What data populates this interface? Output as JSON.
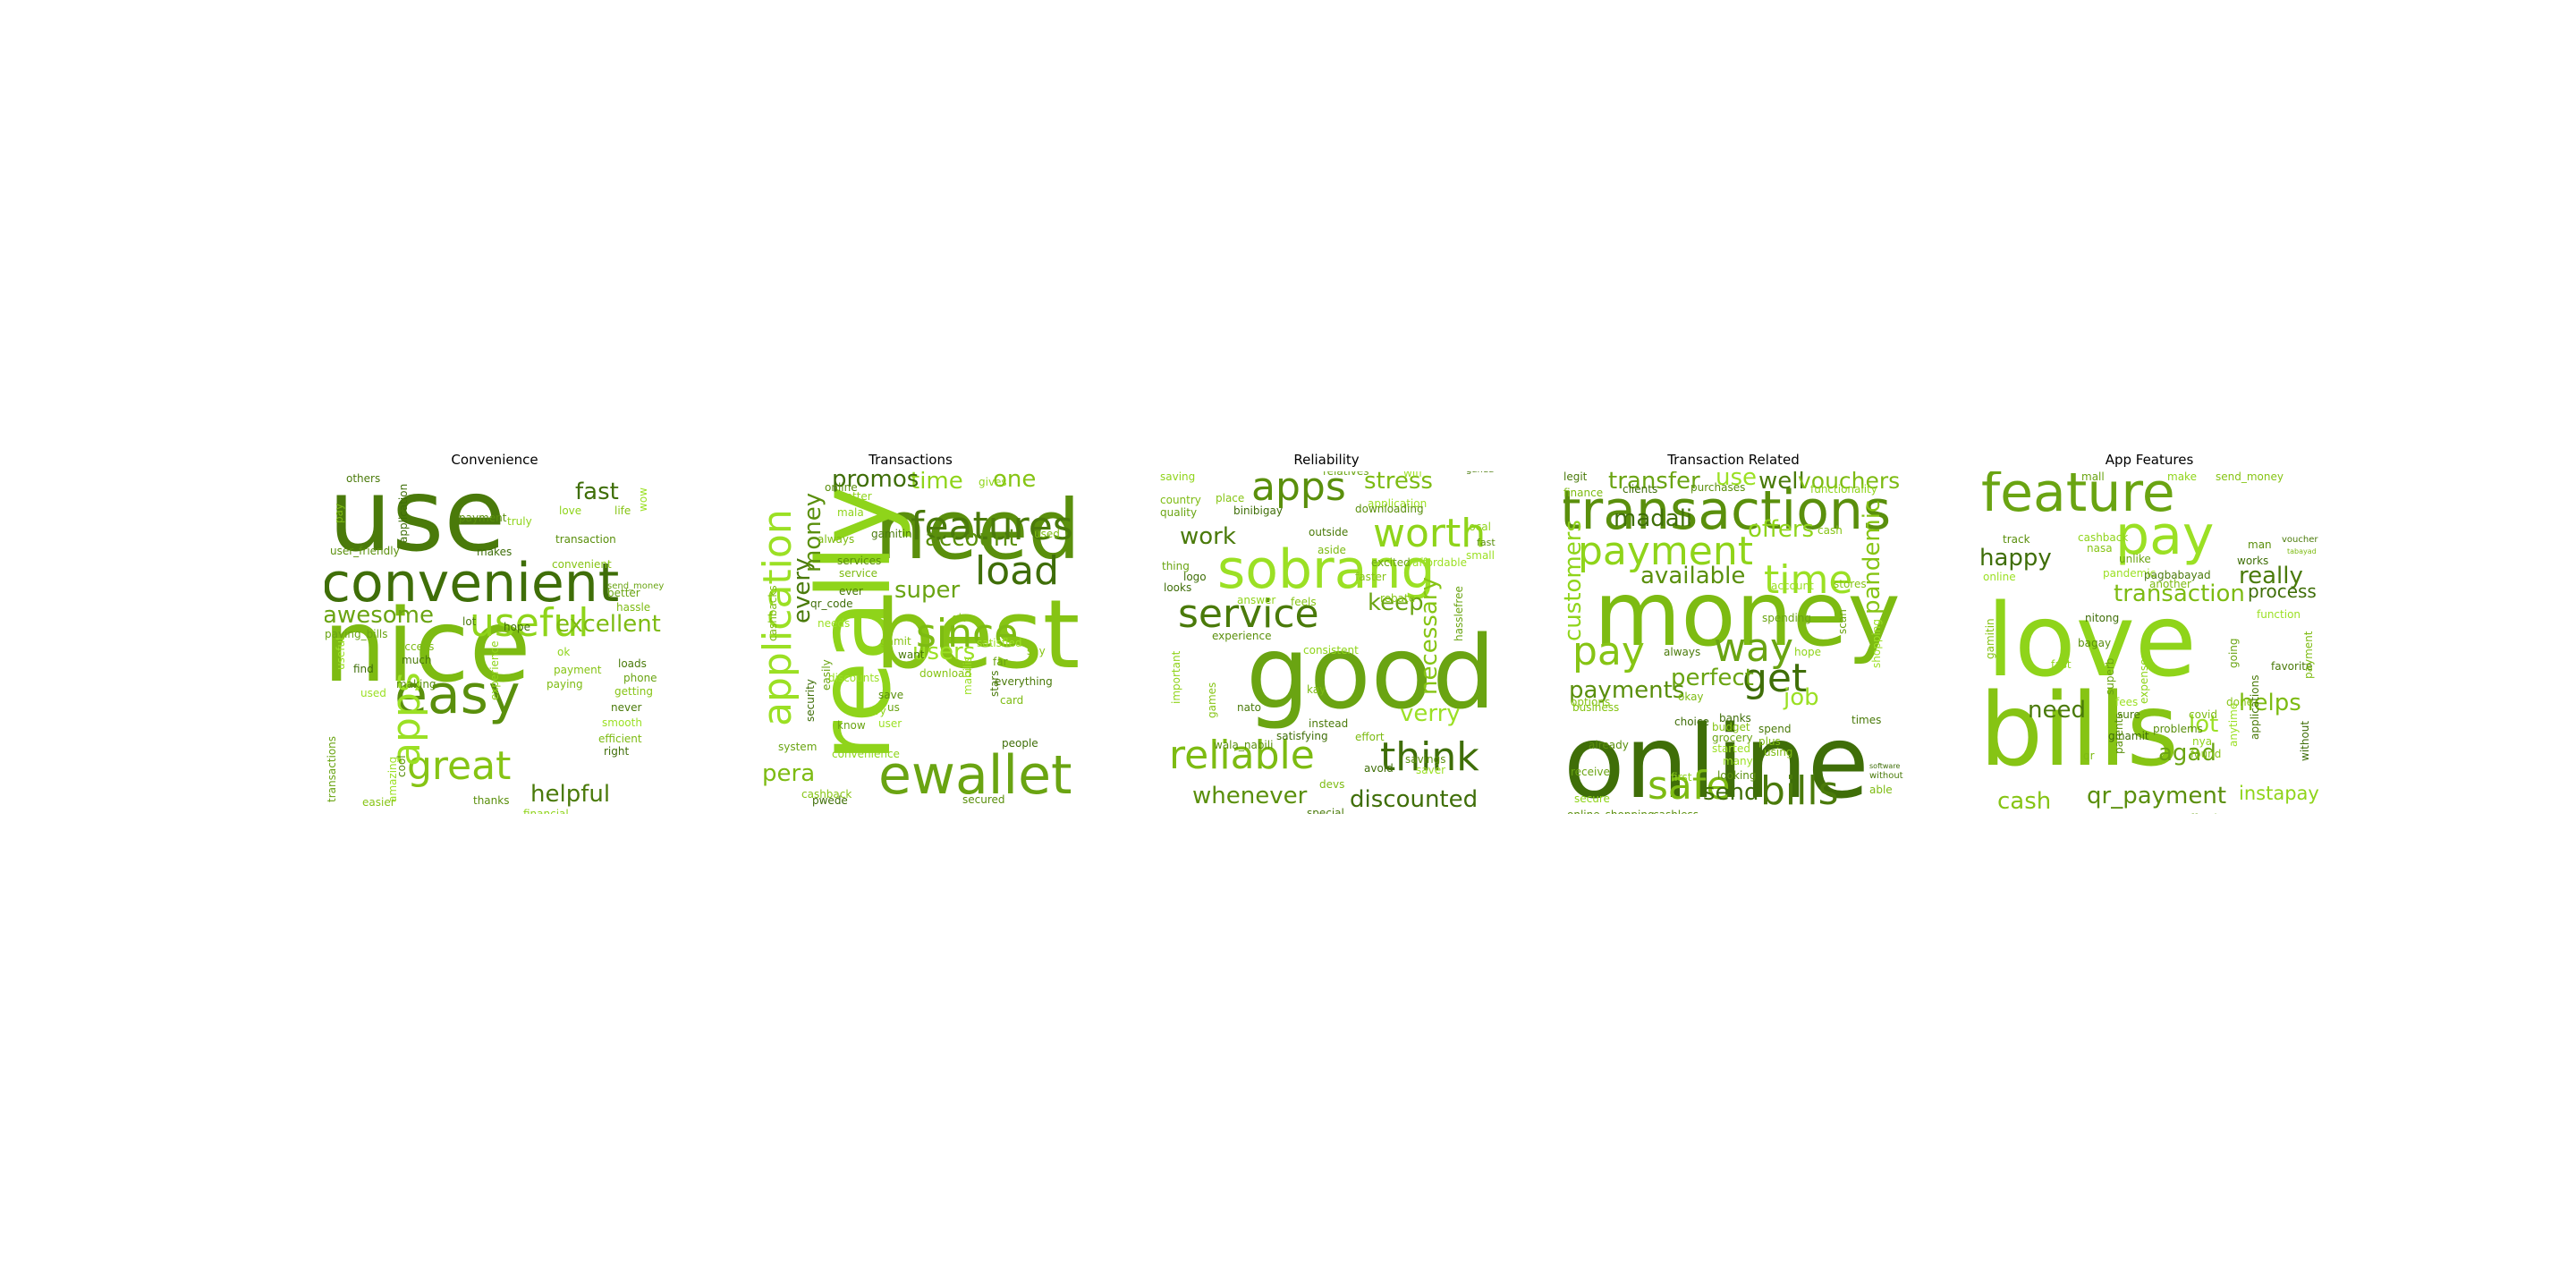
{
  "chart_data": [
    {
      "type": "wordcloud",
      "title": "Convenience",
      "words": [
        {
          "text": "use",
          "size": 5
        },
        {
          "text": "nice",
          "size": 5
        },
        {
          "text": "convenient",
          "size": 4
        },
        {
          "text": "easy",
          "size": 4
        },
        {
          "text": "useful",
          "size": 3
        },
        {
          "text": "great",
          "size": 3
        },
        {
          "text": "awesome",
          "size": 2
        },
        {
          "text": "apps",
          "size": 3
        },
        {
          "text": "helpful",
          "size": 2
        },
        {
          "text": "excellent",
          "size": 2
        },
        {
          "text": "fast",
          "size": 2
        },
        {
          "text": "transaction",
          "size": 1
        },
        {
          "text": "love",
          "size": 1
        },
        {
          "text": "life",
          "size": 1
        },
        {
          "text": "paying_bills",
          "size": 1
        },
        {
          "text": "amazing",
          "size": 1
        },
        {
          "text": "much",
          "size": 1
        },
        {
          "text": "access",
          "size": 1
        },
        {
          "text": "find",
          "size": 1
        },
        {
          "text": "making",
          "size": 1
        },
        {
          "text": "ok",
          "size": 1
        },
        {
          "text": "payment",
          "size": 1
        },
        {
          "text": "better",
          "size": 1
        },
        {
          "text": "smooth",
          "size": 1
        },
        {
          "text": "never",
          "size": 1
        },
        {
          "text": "efficient",
          "size": 1
        },
        {
          "text": "right",
          "size": 1
        },
        {
          "text": "thanks",
          "size": 1
        },
        {
          "text": "financial",
          "size": 1
        },
        {
          "text": "easier",
          "size": 1
        },
        {
          "text": "transactions",
          "size": 1
        },
        {
          "text": "useful",
          "size": 1
        },
        {
          "text": "lot",
          "size": 1
        },
        {
          "text": "hassle",
          "size": 1
        },
        {
          "text": "makes",
          "size": 1
        },
        {
          "text": "cool",
          "size": 1
        },
        {
          "text": "experience",
          "size": 1
        },
        {
          "text": "convenient",
          "size": 1
        },
        {
          "text": "send_money",
          "size": 1
        },
        {
          "text": "wow",
          "size": 1
        },
        {
          "text": "others",
          "size": 1
        },
        {
          "text": "pay",
          "size": 1
        },
        {
          "text": "application",
          "size": 1
        },
        {
          "text": "user_friendly",
          "size": 1
        },
        {
          "text": "truly",
          "size": 1
        },
        {
          "text": "getting",
          "size": 1
        },
        {
          "text": "phone",
          "size": 1
        },
        {
          "text": "used",
          "size": 1
        },
        {
          "text": "loads",
          "size": 1
        },
        {
          "text": "paying",
          "size": 1
        },
        {
          "text": "hope",
          "size": 1
        },
        {
          "text": "payment",
          "size": 1
        }
      ]
    },
    {
      "type": "wordcloud",
      "title": "Transactions",
      "words": [
        {
          "text": "need",
          "size": 5
        },
        {
          "text": "really",
          "size": 5
        },
        {
          "text": "best",
          "size": 5
        },
        {
          "text": "ewallet",
          "size": 4
        },
        {
          "text": "application",
          "size": 3
        },
        {
          "text": "features",
          "size": 3
        },
        {
          "text": "since",
          "size": 3
        },
        {
          "text": "load",
          "size": 3
        },
        {
          "text": "account",
          "size": 2
        },
        {
          "text": "time",
          "size": 2
        },
        {
          "text": "one",
          "size": 2
        },
        {
          "text": "super",
          "size": 2
        },
        {
          "text": "users",
          "size": 2
        },
        {
          "text": "every",
          "size": 2
        },
        {
          "text": "pera",
          "size": 2
        },
        {
          "text": "promos",
          "size": 2
        },
        {
          "text": "money",
          "size": 2
        },
        {
          "text": "convenience",
          "size": 1
        },
        {
          "text": "cashback",
          "size": 1
        },
        {
          "text": "easily",
          "size": 1
        },
        {
          "text": "discounts",
          "size": 1
        },
        {
          "text": "gamitin",
          "size": 1
        },
        {
          "text": "always",
          "size": 1
        },
        {
          "text": "qr_code",
          "size": 1
        },
        {
          "text": "services",
          "size": 1
        },
        {
          "text": "gives",
          "size": 1
        },
        {
          "text": "give",
          "size": 1
        },
        {
          "text": "far",
          "size": 1
        },
        {
          "text": "satisfied",
          "size": 1
        },
        {
          "text": "everything",
          "size": 1
        },
        {
          "text": "card",
          "size": 1
        },
        {
          "text": "people",
          "size": 1
        },
        {
          "text": "save",
          "size": 1
        },
        {
          "text": "try",
          "size": 1
        },
        {
          "text": "download",
          "size": 1
        },
        {
          "text": "system",
          "size": 1
        },
        {
          "text": "user",
          "size": 1
        },
        {
          "text": "want",
          "size": 1
        },
        {
          "text": "used",
          "size": 1
        },
        {
          "text": "security",
          "size": 1
        },
        {
          "text": "online",
          "size": 1
        },
        {
          "text": "mala",
          "size": 1
        },
        {
          "text": "gamit",
          "size": 1
        },
        {
          "text": "us",
          "size": 1
        },
        {
          "text": "mabilis",
          "size": 1
        },
        {
          "text": "ever",
          "size": 1
        },
        {
          "text": "service",
          "size": 1
        },
        {
          "text": "pwede",
          "size": 1
        },
        {
          "text": "secured",
          "size": 1
        },
        {
          "text": "better",
          "size": 1
        },
        {
          "text": "say",
          "size": 1
        },
        {
          "text": "know",
          "size": 1
        },
        {
          "text": "needs",
          "size": 1
        },
        {
          "text": "stars",
          "size": 1
        },
        {
          "text": "cashbacks",
          "size": 1
        }
      ]
    },
    {
      "type": "wordcloud",
      "title": "Reliability",
      "words": [
        {
          "text": "good",
          "size": 5
        },
        {
          "text": "sobrang",
          "size": 4
        },
        {
          "text": "service",
          "size": 3
        },
        {
          "text": "reliable",
          "size": 3
        },
        {
          "text": "think",
          "size": 3
        },
        {
          "text": "apps",
          "size": 3
        },
        {
          "text": "worth",
          "size": 3
        },
        {
          "text": "necessary",
          "size": 2
        },
        {
          "text": "keep",
          "size": 2
        },
        {
          "text": "verry",
          "size": 2
        },
        {
          "text": "work",
          "size": 2
        },
        {
          "text": "stress",
          "size": 2
        },
        {
          "text": "discounted",
          "size": 2
        },
        {
          "text": "whenever",
          "size": 2
        },
        {
          "text": "saving",
          "size": 1
        },
        {
          "text": "place",
          "size": 1
        },
        {
          "text": "quality",
          "size": 1
        },
        {
          "text": "application",
          "size": 1
        },
        {
          "text": "outside",
          "size": 1
        },
        {
          "text": "aside",
          "size": 1
        },
        {
          "text": "looks",
          "size": 1
        },
        {
          "text": "experience",
          "size": 1
        },
        {
          "text": "consistent",
          "size": 1
        },
        {
          "text": "faster",
          "size": 1
        },
        {
          "text": "hasslefree",
          "size": 1
        },
        {
          "text": "small",
          "size": 1
        },
        {
          "text": "instead",
          "size": 1
        },
        {
          "text": "effort",
          "size": 1
        },
        {
          "text": "satisfying",
          "size": 1
        },
        {
          "text": "savings",
          "size": 1
        },
        {
          "text": "important",
          "size": 1
        },
        {
          "text": "games",
          "size": 1
        },
        {
          "text": "thing",
          "size": 1
        },
        {
          "text": "wifi",
          "size": 1
        },
        {
          "text": "ganda",
          "size": 1
        },
        {
          "text": "country",
          "size": 1
        },
        {
          "text": "binibigay",
          "size": 1
        },
        {
          "text": "downloading",
          "size": 1
        },
        {
          "text": "local",
          "size": 1
        },
        {
          "text": "rebate",
          "size": 1
        },
        {
          "text": "relatives",
          "size": 1
        },
        {
          "text": "saver",
          "size": 1
        },
        {
          "text": "special",
          "size": 1
        },
        {
          "text": "devs",
          "size": 1
        },
        {
          "text": "avoid",
          "size": 1
        },
        {
          "text": "fast",
          "size": 1
        },
        {
          "text": "answer",
          "size": 1
        },
        {
          "text": "feels",
          "size": 1
        },
        {
          "text": "excited",
          "size": 1
        },
        {
          "text": "affordable",
          "size": 1
        },
        {
          "text": "nato",
          "size": 1
        },
        {
          "text": "kay",
          "size": 1
        },
        {
          "text": "logo",
          "size": 1
        },
        {
          "text": "wala_nabili",
          "size": 1
        }
      ]
    },
    {
      "type": "wordcloud",
      "title": "Transaction Related",
      "words": [
        {
          "text": "money",
          "size": 5
        },
        {
          "text": "online",
          "size": 5
        },
        {
          "text": "transactions",
          "size": 4
        },
        {
          "text": "payment",
          "size": 3
        },
        {
          "text": "pay",
          "size": 3
        },
        {
          "text": "way",
          "size": 3
        },
        {
          "text": "time",
          "size": 3
        },
        {
          "text": "bills",
          "size": 3
        },
        {
          "text": "safe",
          "size": 3
        },
        {
          "text": "get",
          "size": 3
        },
        {
          "text": "payments",
          "size": 2
        },
        {
          "text": "customers",
          "size": 2
        },
        {
          "text": "pandemic",
          "size": 2
        },
        {
          "text": "transfer",
          "size": 2
        },
        {
          "text": "use",
          "size": 2
        },
        {
          "text": "well",
          "size": 2
        },
        {
          "text": "vouchers",
          "size": 2
        },
        {
          "text": "madali",
          "size": 2
        },
        {
          "text": "available",
          "size": 2
        },
        {
          "text": "offers",
          "size": 2
        },
        {
          "text": "cash",
          "size": 1
        },
        {
          "text": "perfect",
          "size": 2
        },
        {
          "text": "job",
          "size": 2
        },
        {
          "text": "always",
          "size": 1
        },
        {
          "text": "okay",
          "size": 1
        },
        {
          "text": "send",
          "size": 2
        },
        {
          "text": "cashless",
          "size": 1
        },
        {
          "text": "secure",
          "size": 1
        },
        {
          "text": "business",
          "size": 1
        },
        {
          "text": "scan",
          "size": 1
        },
        {
          "text": "shopping",
          "size": 1
        },
        {
          "text": "legit",
          "size": 1
        },
        {
          "text": "finance",
          "size": 1
        },
        {
          "text": "clients",
          "size": 1
        },
        {
          "text": "purchases",
          "size": 1
        },
        {
          "text": "functionality",
          "size": 1
        },
        {
          "text": "budget",
          "size": 1
        },
        {
          "text": "grocery",
          "size": 1
        },
        {
          "text": "started",
          "size": 1
        },
        {
          "text": "spend",
          "size": 1
        },
        {
          "text": "plus",
          "size": 1
        },
        {
          "text": "banks",
          "size": 1
        },
        {
          "text": "looking",
          "size": 1
        },
        {
          "text": "hope",
          "size": 1
        },
        {
          "text": "stores",
          "size": 1
        },
        {
          "text": "spending",
          "size": 1
        },
        {
          "text": "account",
          "size": 1
        },
        {
          "text": "without",
          "size": 1
        },
        {
          "text": "able",
          "size": 1
        },
        {
          "text": "software",
          "size": 1
        },
        {
          "text": "online_shopping",
          "size": 1
        },
        {
          "text": "first",
          "size": 1
        },
        {
          "text": "options",
          "size": 1
        },
        {
          "text": "receive",
          "size": 1
        },
        {
          "text": "many",
          "size": 1
        },
        {
          "text": "times",
          "size": 1
        },
        {
          "text": "using",
          "size": 1
        },
        {
          "text": "choice",
          "size": 1
        },
        {
          "text": "already",
          "size": 1
        }
      ]
    },
    {
      "type": "wordcloud",
      "title": "App Features",
      "words": [
        {
          "text": "love",
          "size": 5
        },
        {
          "text": "bills",
          "size": 5
        },
        {
          "text": "feature",
          "size": 4
        },
        {
          "text": "pay",
          "size": 4
        },
        {
          "text": "really",
          "size": 2
        },
        {
          "text": "transaction",
          "size": 2
        },
        {
          "text": "happy",
          "size": 2
        },
        {
          "text": "qr_payment",
          "size": 2
        },
        {
          "text": "instapay",
          "size": 2
        },
        {
          "text": "cash",
          "size": 2
        },
        {
          "text": "agad",
          "size": 2
        },
        {
          "text": "lot",
          "size": 2
        },
        {
          "text": "need",
          "size": 2
        },
        {
          "text": "helps",
          "size": 2
        },
        {
          "text": "process",
          "size": 2
        },
        {
          "text": "man",
          "size": 1
        },
        {
          "text": "make",
          "size": 1
        },
        {
          "text": "send_money",
          "size": 1
        },
        {
          "text": "mall",
          "size": 1
        },
        {
          "text": "online",
          "size": 1
        },
        {
          "text": "voucher",
          "size": 1
        },
        {
          "text": "tabayad",
          "size": 1
        },
        {
          "text": "works",
          "size": 1
        },
        {
          "text": "track",
          "size": 1
        },
        {
          "text": "cashback",
          "size": 1
        },
        {
          "text": "nasa",
          "size": 1
        },
        {
          "text": "unlike",
          "size": 1
        },
        {
          "text": "pandemic",
          "size": 1
        },
        {
          "text": "pagbabayad",
          "size": 1
        },
        {
          "text": "another",
          "size": 1
        },
        {
          "text": "nitong",
          "size": 1
        },
        {
          "text": "bagay",
          "size": 1
        },
        {
          "text": "fast",
          "size": 1
        },
        {
          "text": "gamitin",
          "size": 1
        },
        {
          "text": "superb",
          "size": 1
        },
        {
          "text": "fees",
          "size": 1
        },
        {
          "text": "sure",
          "size": 1
        },
        {
          "text": "covid",
          "size": 1
        },
        {
          "text": "ginamit",
          "size": 1
        },
        {
          "text": "problems",
          "size": 1
        },
        {
          "text": "nya",
          "size": 1
        },
        {
          "text": "found",
          "size": 1
        },
        {
          "text": "effective",
          "size": 1
        },
        {
          "text": "function",
          "size": 1
        },
        {
          "text": "favorite",
          "size": 1
        },
        {
          "text": "payment",
          "size": 1
        },
        {
          "text": "without",
          "size": 1
        },
        {
          "text": "parents",
          "size": 1
        },
        {
          "text": "expenses",
          "size": 1
        },
        {
          "text": "done",
          "size": 1
        },
        {
          "text": "going",
          "size": 1
        },
        {
          "text": "anytime",
          "size": 1
        },
        {
          "text": "applications",
          "size": 1
        },
        {
          "text": "qr",
          "size": 1
        }
      ]
    }
  ]
}
